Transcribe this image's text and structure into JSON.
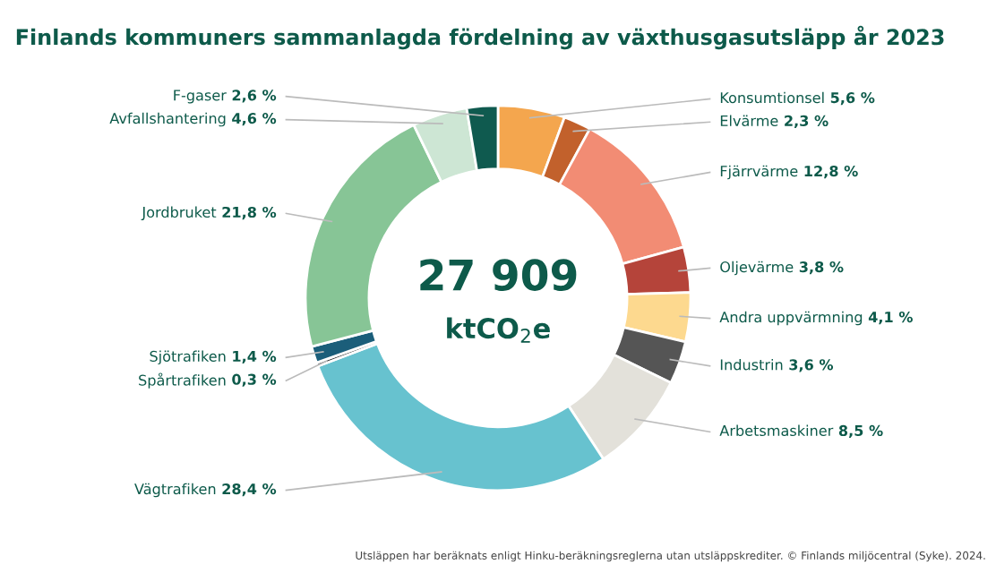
{
  "chart_data": {
    "type": "donut",
    "title": "Finlands kommuners sammanlagda fördelning av växthusgasutsläpp år 2023",
    "categories": [
      "Konsumtionsel",
      "Elvärme",
      "Fjärrvärme",
      "Oljevärme",
      "Andra uppvärmning",
      "Industrin",
      "Arbetsmaskiner",
      "Vägtrafiken",
      "Spårtrafiken",
      "Sjötrafiken",
      "Jordbruket",
      "Avfallshantering",
      "F-gaser"
    ],
    "values": [
      5.6,
      2.3,
      12.8,
      3.8,
      4.1,
      3.6,
      8.5,
      28.4,
      0.3,
      1.4,
      21.8,
      4.6,
      2.6
    ],
    "value_labels": [
      "5,6 %",
      "2,3 %",
      "12,8 %",
      "3,8 %",
      "4,1 %",
      "3,6 %",
      "8,5 %",
      "28,4 %",
      "0,3 %",
      "1,4 %",
      "21,8 %",
      "4,6 %",
      "2,6 %"
    ],
    "colors": [
      "#f4a64e",
      "#c2612c",
      "#f28c74",
      "#b5443a",
      "#fdd98f",
      "#555555",
      "#e3e1da",
      "#67c2cf",
      "#333333",
      "#1b5e7a",
      "#87c596",
      "#cde6d4",
      "#0f5a4f"
    ],
    "annotations": [
      "27 909",
      "ktCO$_{2}$e",
      "Utsläppen har beräknats enligt Hinku-beräkningsreglerna utan utsläppskrediter. © Finlands miljöcentral (Syke). 2024."
    ],
    "legend": false
  }
}
